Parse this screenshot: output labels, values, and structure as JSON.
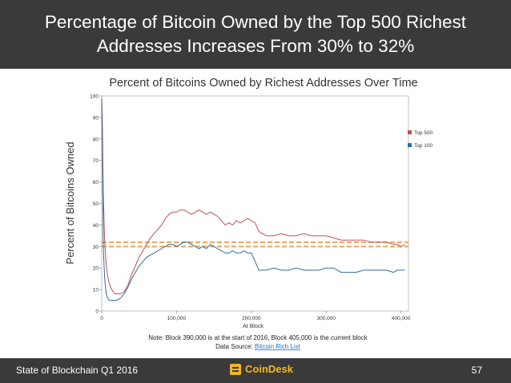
{
  "slide": {
    "title": "Percentage of Bitcoin Owned by the Top 500 Richest Addresses Increases From 30% to 32%",
    "footer_left": "State of Blockchain Q1 2016",
    "brand_name": "CoinDesk",
    "page_number": "57"
  },
  "colors": {
    "header_bg": "#3a3a3a",
    "top500": "#c0504d",
    "top100": "#2e6da4",
    "ref_line": "#f0a050",
    "brand": "#f2b820"
  },
  "chart_data": {
    "type": "line",
    "title": "Percent of Bitcoins Owned by Richest Addresses Over Time",
    "xlabel": "At Block",
    "ylabel": "Percent of Bitcoins Owned",
    "xlim": [
      0,
      410000
    ],
    "ylim": [
      0,
      100
    ],
    "xticks": [
      0,
      100000,
      200000,
      300000,
      400000
    ],
    "xtick_labels": [
      "0",
      "100,000",
      "200,000",
      "300,000",
      "400,000"
    ],
    "yticks": [
      0,
      10,
      20,
      30,
      40,
      50,
      60,
      70,
      80,
      90,
      100
    ],
    "ytick_labels": [
      "0",
      "10",
      "20",
      "30",
      "40",
      "50",
      "60",
      "70",
      "80",
      "90",
      "100"
    ],
    "legend_position": "right",
    "note": "Note: Block 390,000 is at the start of 2016, Block 405,000 is the current block",
    "source_prefix": "Data Source: ",
    "source_link": "Bitcoin Rich List",
    "reference_lines": [
      {
        "name": "30% reference",
        "value": 30
      },
      {
        "name": "32% reference",
        "value": 32
      }
    ],
    "series": [
      {
        "name": "Top 500",
        "x": [
          0,
          1000,
          2000,
          4000,
          6000,
          8000,
          10000,
          12000,
          15000,
          18000,
          20000,
          25000,
          30000,
          35000,
          40000,
          45000,
          50000,
          55000,
          60000,
          65000,
          70000,
          75000,
          80000,
          85000,
          90000,
          95000,
          100000,
          105000,
          110000,
          115000,
          120000,
          125000,
          130000,
          135000,
          140000,
          145000,
          150000,
          155000,
          160000,
          165000,
          170000,
          175000,
          180000,
          185000,
          190000,
          195000,
          200000,
          205000,
          210000,
          215000,
          220000,
          230000,
          240000,
          250000,
          260000,
          270000,
          280000,
          290000,
          300000,
          310000,
          320000,
          330000,
          340000,
          350000,
          360000,
          370000,
          380000,
          390000,
          395000,
          400000,
          405000
        ],
        "values": [
          99,
          85,
          55,
          32,
          22,
          16,
          13,
          11,
          9,
          8,
          8,
          8,
          9,
          12,
          17,
          21,
          25,
          28,
          31,
          34,
          36,
          38,
          40,
          43,
          45,
          46,
          46,
          47,
          47,
          46,
          45,
          46,
          47,
          46,
          45,
          46,
          45,
          44,
          42,
          40,
          41,
          40,
          42,
          41,
          42,
          43,
          42,
          41,
          37,
          36,
          35,
          35,
          36,
          35,
          35,
          36,
          35,
          35,
          35,
          34,
          33,
          33,
          33,
          33,
          32,
          32,
          32,
          31,
          31,
          30,
          31
        ]
      },
      {
        "name": "Top 100",
        "x": [
          0,
          1000,
          2000,
          4000,
          6000,
          8000,
          10000,
          12000,
          15000,
          18000,
          20000,
          25000,
          30000,
          35000,
          40000,
          45000,
          50000,
          55000,
          60000,
          65000,
          70000,
          75000,
          80000,
          85000,
          90000,
          95000,
          100000,
          105000,
          110000,
          115000,
          120000,
          125000,
          130000,
          135000,
          140000,
          145000,
          150000,
          155000,
          160000,
          165000,
          170000,
          175000,
          180000,
          185000,
          190000,
          195000,
          200000,
          205000,
          210000,
          215000,
          220000,
          230000,
          240000,
          250000,
          260000,
          270000,
          280000,
          290000,
          300000,
          310000,
          320000,
          330000,
          340000,
          350000,
          360000,
          370000,
          380000,
          390000,
          395000,
          400000,
          405000
        ],
        "values": [
          99,
          70,
          30,
          15,
          8,
          6,
          5,
          5,
          5,
          5,
          5,
          6,
          8,
          11,
          15,
          18,
          21,
          23,
          25,
          26,
          27,
          28,
          29,
          30,
          31,
          31,
          30,
          31,
          32,
          32,
          31,
          30,
          29,
          30,
          29,
          31,
          30,
          29,
          28,
          27,
          27,
          28,
          27,
          27,
          28,
          27,
          27,
          23,
          19,
          19,
          19,
          20,
          19,
          19,
          20,
          19,
          19,
          19,
          20,
          20,
          18,
          18,
          18,
          19,
          19,
          19,
          19,
          18,
          19,
          19,
          19
        ]
      }
    ]
  }
}
